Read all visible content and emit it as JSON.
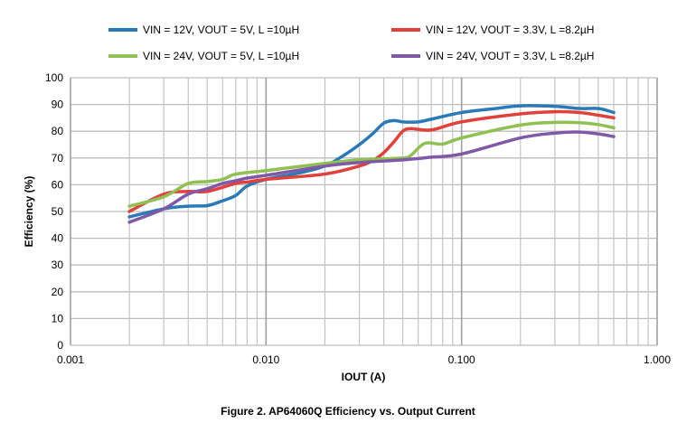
{
  "caption": "Figure 2. AP64060Q Efficiency vs. Output Current",
  "chart_data": {
    "type": "line",
    "title": "",
    "xlabel": "IOUT (A)",
    "ylabel": "Efficiency (%)",
    "xscale": "log",
    "xlim": [
      0.001,
      1.0
    ],
    "ylim": [
      0,
      100
    ],
    "x_tick_labels": [
      "0.001",
      "0.010",
      "0.100",
      "1.000"
    ],
    "y_tick_labels": [
      "0",
      "10",
      "20",
      "30",
      "40",
      "50",
      "60",
      "70",
      "80",
      "90",
      "100"
    ],
    "grid": true,
    "legend_placement": "top",
    "series": [
      {
        "name": "VIN = 12V, VOUT = 5V, L =10µH",
        "color": "#2a7ab8",
        "x": [
          0.002,
          0.003,
          0.004,
          0.005,
          0.006,
          0.007,
          0.008,
          0.01,
          0.015,
          0.02,
          0.025,
          0.03,
          0.035,
          0.04,
          0.045,
          0.05,
          0.06,
          0.07,
          0.1,
          0.15,
          0.2,
          0.3,
          0.4,
          0.5,
          0.6
        ],
        "y": [
          48,
          51,
          52,
          52.2,
          54,
          56,
          59.5,
          62,
          64.5,
          67,
          71,
          75,
          79,
          83,
          84,
          83.5,
          83.5,
          84.5,
          87,
          88.5,
          89.5,
          89.3,
          88.5,
          88.5,
          87
        ]
      },
      {
        "name": "VIN = 12V, VOUT = 3.3V, L =8.2µH",
        "color": "#e0413a",
        "x": [
          0.002,
          0.003,
          0.004,
          0.005,
          0.007,
          0.008,
          0.01,
          0.02,
          0.03,
          0.035,
          0.04,
          0.045,
          0.05,
          0.055,
          0.07,
          0.1,
          0.2,
          0.3,
          0.4,
          0.5,
          0.6
        ],
        "y": [
          50,
          56.5,
          57.5,
          57.5,
          60.5,
          61,
          62,
          64,
          67,
          69,
          72,
          76,
          80,
          81,
          80.5,
          83.5,
          86.5,
          87.3,
          87,
          86,
          85
        ]
      },
      {
        "name": "VIN = 24V, VOUT = 5V, L =10µH",
        "color": "#8fc152",
        "x": [
          0.002,
          0.003,
          0.004,
          0.005,
          0.006,
          0.007,
          0.01,
          0.02,
          0.03,
          0.05,
          0.055,
          0.065,
          0.08,
          0.1,
          0.2,
          0.3,
          0.4,
          0.5,
          0.6
        ],
        "y": [
          52,
          55.5,
          60.5,
          61.2,
          62,
          64,
          65.3,
          68,
          69.3,
          70,
          71,
          75.5,
          75.2,
          77.5,
          82.3,
          83.3,
          83.2,
          82.5,
          81.3
        ]
      },
      {
        "name": "VIN = 24V, VOUT = 3.3V, L =8.2µH",
        "color": "#7f58a8",
        "x": [
          0.002,
          0.003,
          0.004,
          0.005,
          0.006,
          0.007,
          0.008,
          0.01,
          0.02,
          0.03,
          0.05,
          0.07,
          0.1,
          0.2,
          0.3,
          0.4,
          0.5,
          0.6
        ],
        "y": [
          46,
          51,
          56.5,
          58.5,
          60.5,
          61.5,
          62.5,
          63.5,
          67,
          68.3,
          69.3,
          70.3,
          71.5,
          77.5,
          79.3,
          79.7,
          79,
          78
        ]
      }
    ]
  }
}
